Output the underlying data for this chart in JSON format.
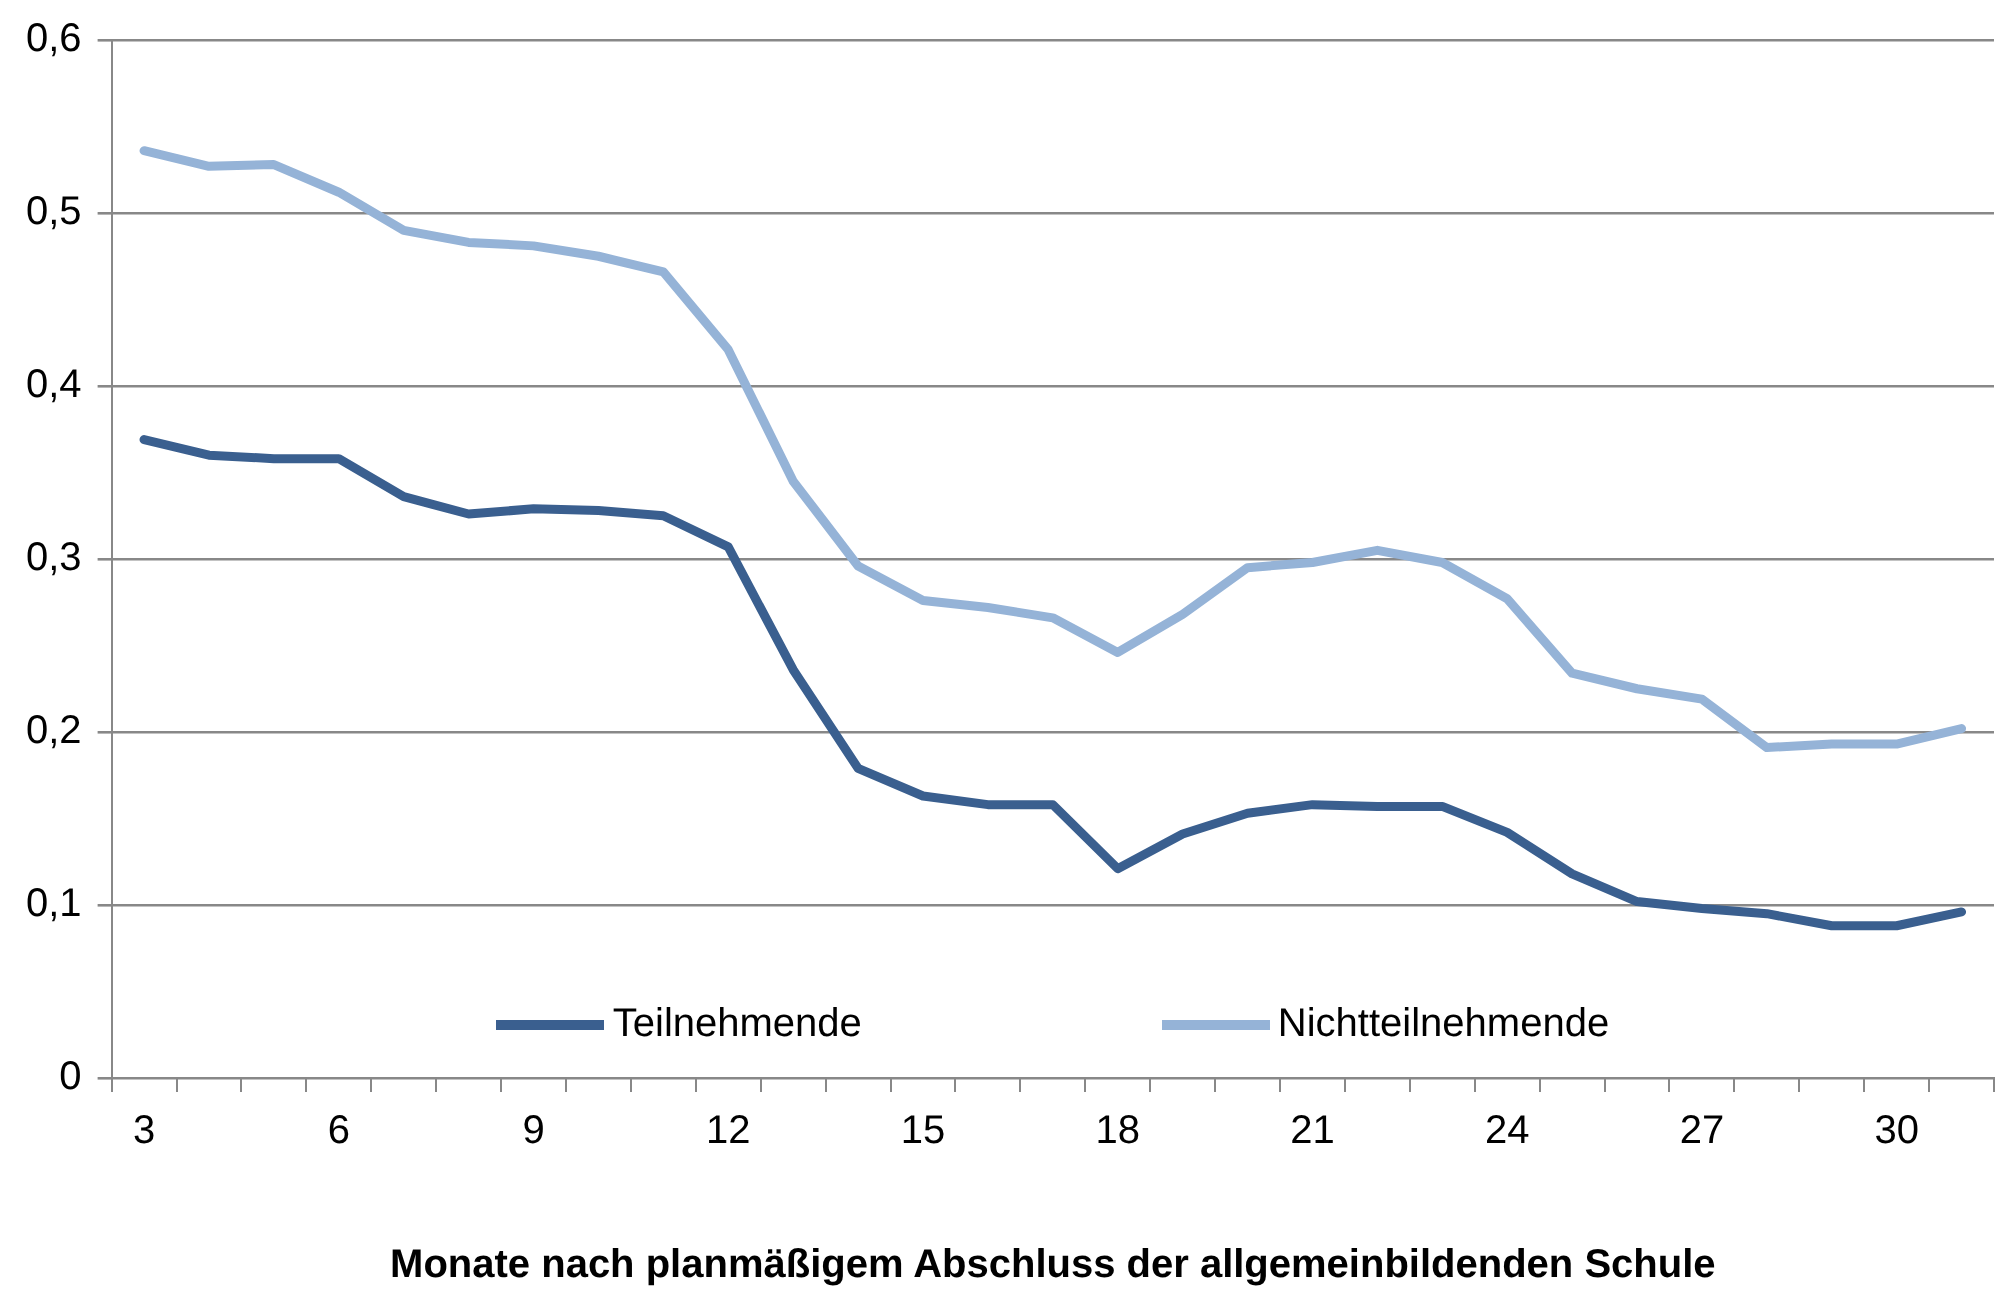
{
  "chart_data": {
    "type": "line",
    "xlabel": "Monate nach planmäßigem Abschluss der allgemeinbildenden Schule",
    "categories": [
      "3",
      null,
      null,
      "6",
      null,
      null,
      "9",
      null,
      null,
      "12",
      null,
      null,
      "15",
      null,
      null,
      "18",
      null,
      null,
      "21",
      null,
      null,
      "24",
      null,
      null,
      "27",
      null,
      null,
      "30",
      null
    ],
    "series": [
      {
        "name": "Teilnehmende",
        "color": "#3a5f8f",
        "values": [
          0.369,
          0.36,
          0.358,
          0.358,
          0.336,
          0.326,
          0.329,
          0.328,
          0.325,
          0.307,
          0.236,
          0.179,
          0.163,
          0.158,
          0.158,
          0.121,
          0.141,
          0.153,
          0.158,
          0.157,
          0.157,
          0.142,
          0.118,
          0.102,
          0.098,
          0.095,
          0.088,
          0.088,
          0.096
        ]
      },
      {
        "name": "Nichtteilnehmende",
        "color": "#95b3d7",
        "values": [
          0.536,
          0.527,
          0.528,
          0.512,
          0.49,
          0.483,
          0.481,
          0.475,
          0.466,
          0.421,
          0.345,
          0.296,
          0.276,
          0.272,
          0.266,
          0.246,
          0.268,
          0.295,
          0.298,
          0.305,
          0.298,
          0.277,
          0.234,
          0.225,
          0.219,
          0.191,
          0.193,
          0.193,
          0.202
        ]
      }
    ],
    "ylim": [
      0,
      0.6
    ],
    "yticks": [
      {
        "value": 0,
        "label": "0"
      },
      {
        "value": 0.1,
        "label": "0,1"
      },
      {
        "value": 0.2,
        "label": "0,2"
      },
      {
        "value": 0.3,
        "label": "0,3"
      },
      {
        "value": 0.4,
        "label": "0,4"
      },
      {
        "value": 0.5,
        "label": "0,5"
      },
      {
        "value": 0.6,
        "label": "0,6"
      }
    ],
    "grid": "y",
    "legend": "bottom",
    "marker": "none",
    "line_style": "solid"
  }
}
